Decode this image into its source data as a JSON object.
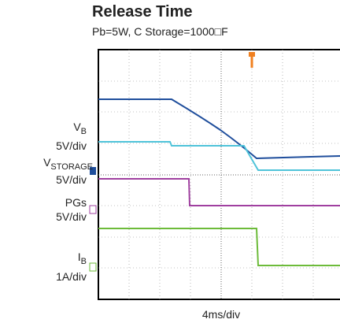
{
  "title": "Release Time",
  "subtitle": "Pb=5W, C Storage=1000□F",
  "channels": [
    {
      "label": "V",
      "sub": "B",
      "scale": "5V/div"
    },
    {
      "label": "V",
      "sub": "STORAGE",
      "scale": "5V/div"
    },
    {
      "label": "PGs",
      "scale": "5V/div"
    },
    {
      "label": "I",
      "sub": "B",
      "scale": "1A/div"
    }
  ],
  "x_label": "4ms/div"
}
